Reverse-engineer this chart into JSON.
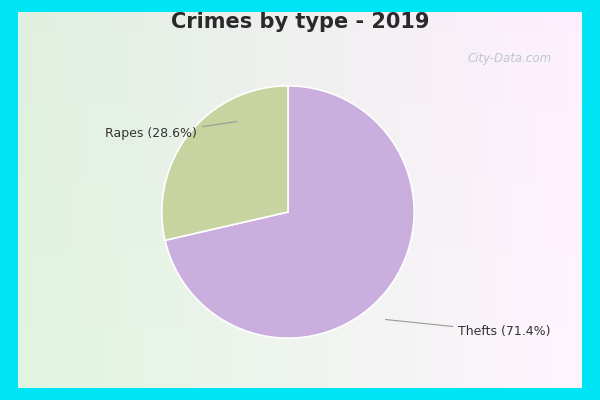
{
  "title": "Crimes by type - 2019",
  "slices": [
    71.4,
    28.6
  ],
  "colors": [
    "#c9aede",
    "#c8d4a0"
  ],
  "background_cyan": "#00e5f5",
  "background_inner_color1": "#e0f5e0",
  "background_inner_color2": "#f0faf8",
  "watermark": "City-Data.com",
  "annotation_thefts": "Thefts (71.4%)",
  "annotation_rapes": "Rapes (28.6%)",
  "startangle": 90,
  "title_color": "#2a2a2a",
  "title_fontsize": 15,
  "label_fontsize": 9,
  "label_color": "#333333",
  "arrow_color": "#999999"
}
